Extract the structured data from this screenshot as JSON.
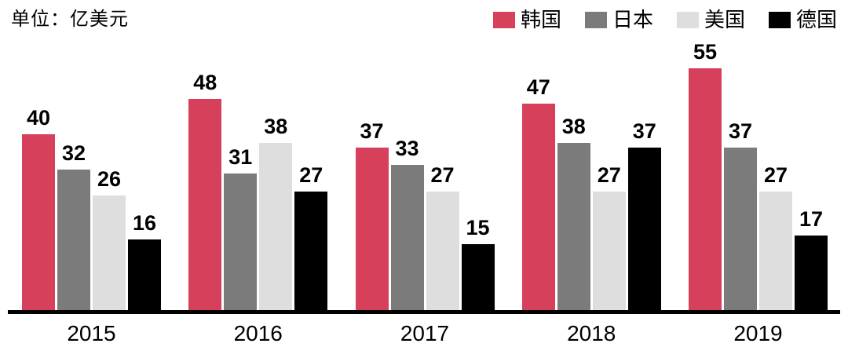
{
  "header": {
    "unit_label": "单位：亿美元"
  },
  "chart_data": {
    "type": "bar",
    "title": "",
    "xlabel": "",
    "ylabel": "单位：亿美元",
    "categories": [
      "2015",
      "2016",
      "2017",
      "2018",
      "2019"
    ],
    "series": [
      {
        "name": "韩国",
        "key": "south-korea",
        "color": "#d6405a",
        "values": [
          40,
          48,
          37,
          47,
          55
        ]
      },
      {
        "name": "日本",
        "key": "japan",
        "color": "#7b7b7b",
        "values": [
          32,
          31,
          33,
          38,
          37
        ]
      },
      {
        "name": "美国",
        "key": "usa",
        "color": "#dedede",
        "values": [
          26,
          38,
          27,
          27,
          27
        ]
      },
      {
        "name": "德国",
        "key": "germany",
        "color": "#000000",
        "values": [
          16,
          27,
          15,
          37,
          17
        ]
      }
    ],
    "ylim": [
      0,
      58
    ],
    "grid": false,
    "value_labels": true,
    "legend_position": "top-right",
    "axis_color": "#000000",
    "background_color": "#ffffff",
    "label_text_color": "#000000"
  }
}
